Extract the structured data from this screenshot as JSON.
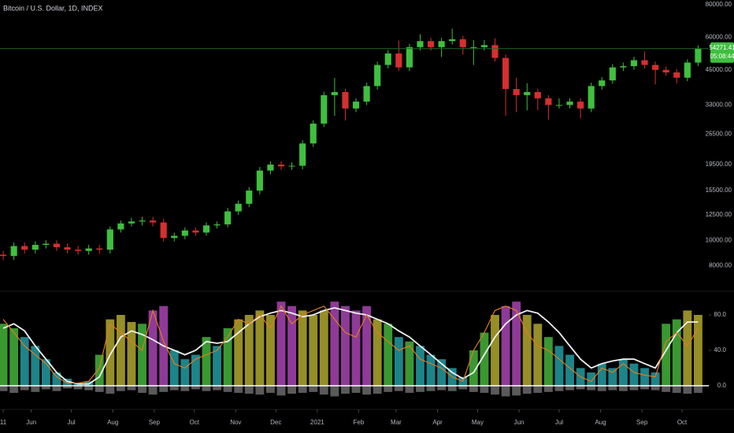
{
  "chart_data": [
    {
      "type": "candlestick",
      "title": "Bitcoin / U.S. Dollar, 1D, INDEX",
      "log_scale": true,
      "up_color": "#3fbf3f",
      "down_color": "#d62f2f",
      "price_line_color": "#1e6b2a",
      "countdown": "05:08:44",
      "xlim": [
        -0.3,
        66
      ],
      "ylim": [
        6830,
        83400
      ],
      "yticks": [
        {
          "value": 8000,
          "label": "8000.00"
        },
        {
          "value": 10000,
          "label": "10000.00"
        },
        {
          "value": 12500,
          "label": "12500.00"
        },
        {
          "value": 15500,
          "label": "15500.00"
        },
        {
          "value": 19500,
          "label": "19500.00"
        },
        {
          "value": 25500,
          "label": "25500.00"
        },
        {
          "value": 33000,
          "label": "33000.00"
        },
        {
          "value": 45000,
          "label": "45000.00"
        },
        {
          "value": 60000,
          "label": "60000.00"
        },
        {
          "value": 80000,
          "label": "80000.00"
        }
      ],
      "open": [
        8800,
        8700,
        9500,
        9200,
        9600,
        9700,
        9400,
        9200,
        9100,
        9300,
        9200,
        11000,
        11600,
        11800,
        11900,
        11700,
        10200,
        10400,
        10900,
        10700,
        11400,
        11500,
        12900,
        13800,
        15500,
        18500,
        19500,
        19200,
        19300,
        23500,
        28000,
        36000,
        37000,
        32000,
        34000,
        39000,
        47000,
        52000,
        46000,
        55000,
        58000,
        55000,
        58000,
        59000,
        55000,
        55000,
        56000,
        50000,
        38000,
        36000,
        37000,
        35000,
        33000,
        33000,
        34000,
        32000,
        39000,
        41000,
        46000,
        46500,
        49000,
        47000,
        45000,
        44000,
        42000,
        48000
      ],
      "high": [
        9100,
        9800,
        9800,
        9900,
        10000,
        10000,
        9700,
        9500,
        9600,
        9600,
        11300,
        11900,
        12200,
        12300,
        12300,
        12100,
        10700,
        11200,
        11200,
        11700,
        11800,
        13300,
        14200,
        16000,
        19100,
        20100,
        20100,
        19900,
        24200,
        28800,
        37100,
        41900,
        38100,
        35000,
        40200,
        48400,
        53600,
        58300,
        56700,
        61700,
        59700,
        59700,
        64800,
        60800,
        58600,
        58600,
        59500,
        51500,
        42000,
        40000,
        38100,
        36000,
        35000,
        35000,
        35000,
        40200,
        42200,
        47400,
        48000,
        50500,
        52900,
        48400,
        46400,
        45300,
        49400,
        55800
      ],
      "low": [
        8400,
        8400,
        8900,
        8900,
        9300,
        9100,
        8900,
        8800,
        8800,
        8900,
        8900,
        10700,
        11300,
        11400,
        11300,
        9900,
        9900,
        10100,
        10400,
        10400,
        11100,
        11200,
        12500,
        13400,
        15000,
        17900,
        18600,
        18600,
        18700,
        22800,
        27200,
        30000,
        28800,
        31000,
        33000,
        37800,
        45600,
        44600,
        44600,
        53400,
        53400,
        50400,
        56300,
        51500,
        47000,
        53400,
        48500,
        30000,
        31000,
        31500,
        31500,
        29000,
        32000,
        32000,
        29300,
        31000,
        37800,
        39800,
        44600,
        45100,
        45600,
        39600,
        42700,
        40000,
        40700,
        46600
      ],
      "close": [
        8700,
        9500,
        9200,
        9600,
        9700,
        9400,
        9200,
        9100,
        9300,
        9200,
        11000,
        11600,
        11800,
        11900,
        11700,
        10200,
        10400,
        10900,
        10700,
        11400,
        11500,
        12900,
        13800,
        15500,
        18500,
        19500,
        19200,
        19300,
        23500,
        28000,
        36000,
        37000,
        32000,
        34000,
        39000,
        47000,
        52000,
        46000,
        55000,
        58000,
        55000,
        58000,
        59000,
        55000,
        55000,
        56000,
        50000,
        38000,
        36000,
        37000,
        35000,
        33000,
        33000,
        34000,
        32000,
        39000,
        41000,
        46000,
        46500,
        49000,
        47000,
        45000,
        44000,
        42000,
        48000,
        54271.41
      ]
    },
    {
      "type": "indicator",
      "xlim": [
        -0.3,
        66
      ],
      "xticks": [
        {
          "value": 0,
          "label": "11"
        },
        {
          "value": 2.625,
          "label": "Jun"
        },
        {
          "value": 6.375,
          "label": "Jul"
        },
        {
          "value": 10.25,
          "label": "Aug"
        },
        {
          "value": 14.125,
          "label": "Sep"
        },
        {
          "value": 17.875,
          "label": "Oct"
        },
        {
          "value": 21.75,
          "label": "Nov"
        },
        {
          "value": 25.5,
          "label": "Dec"
        },
        {
          "value": 29.375,
          "label": "2021"
        },
        {
          "value": 33.25,
          "label": "Feb"
        },
        {
          "value": 36.75,
          "label": "Mar"
        },
        {
          "value": 40.625,
          "label": "Apr"
        },
        {
          "value": 44.375,
          "label": "May"
        },
        {
          "value": 48.25,
          "label": "Jun"
        },
        {
          "value": 52,
          "label": "Jul"
        },
        {
          "value": 55.875,
          "label": "Aug"
        },
        {
          "value": 59.75,
          "label": "Sep"
        },
        {
          "value": 63.5,
          "label": "Oct"
        }
      ],
      "ylim": [
        -17.8,
        97.8
      ],
      "yticks": [
        {
          "value": 0,
          "label": "0.0"
        },
        {
          "value": 40,
          "label": "40.0"
        },
        {
          "value": 80,
          "label": "80.0"
        }
      ],
      "histogram": {
        "values": [
          70,
          65,
          55,
          45,
          30,
          15,
          8,
          3,
          5,
          35,
          75,
          80,
          72,
          70,
          85,
          90,
          40,
          30,
          35,
          55,
          45,
          65,
          75,
          80,
          85,
          80,
          95,
          90,
          85,
          80,
          85,
          95,
          90,
          85,
          90,
          75,
          70,
          55,
          50,
          45,
          35,
          30,
          20,
          10,
          40,
          60,
          80,
          90,
          95,
          80,
          70,
          55,
          45,
          35,
          20,
          15,
          25,
          20,
          30,
          25,
          20,
          15,
          70,
          75,
          85,
          80
        ],
        "colors": [
          "#3fa535",
          "#3fa535",
          "#1f8f96",
          "#1f8f96",
          "#1f8f96",
          "#1f8f96",
          "#1f8f96",
          "#1f8f96",
          "#1f8f96",
          "#3fa535",
          "#a39a2a",
          "#a39a2a",
          "#a39a2a",
          "#3fa535",
          "#9b3fa6",
          "#9b3fa6",
          "#1f8f96",
          "#1f8f96",
          "#1f8f96",
          "#3fa535",
          "#1f8f96",
          "#3fa535",
          "#a39a2a",
          "#a39a2a",
          "#a39a2a",
          "#a39a2a",
          "#9b3fa6",
          "#9b3fa6",
          "#a39a2a",
          "#a39a2a",
          "#a39a2a",
          "#9b3fa6",
          "#9b3fa6",
          "#9b3fa6",
          "#9b3fa6",
          "#a39a2a",
          "#3fa535",
          "#1f8f96",
          "#3fa535",
          "#1f8f96",
          "#1f8f96",
          "#1f8f96",
          "#1f8f96",
          "#1f8f96",
          "#3fa535",
          "#3fa535",
          "#a39a2a",
          "#9b3fa6",
          "#9b3fa6",
          "#a39a2a",
          "#a39a2a",
          "#3fa535",
          "#1f8f96",
          "#1f8f96",
          "#1f8f96",
          "#1f8f96",
          "#1f8f96",
          "#1f8f96",
          "#1f8f96",
          "#1f8f96",
          "#1f8f96",
          "#1f8f96",
          "#3fa535",
          "#3fa535",
          "#a39a2a",
          "#a39a2a"
        ]
      },
      "negative_bars": {
        "color": "#5a5a5a",
        "values": [
          -6,
          -8,
          -5,
          -7,
          -4,
          -6,
          -3,
          -4,
          -5,
          -7,
          -9,
          -6,
          -5,
          -8,
          -10,
          -7,
          -5,
          -6,
          -4,
          -6,
          -5,
          -7,
          -8,
          -9,
          -10,
          -8,
          -11,
          -9,
          -8,
          -7,
          -10,
          -12,
          -9,
          -8,
          -10,
          -9,
          -7,
          -6,
          -8,
          -7,
          -6,
          -5,
          -6,
          -4,
          -7,
          -8,
          -10,
          -12,
          -11,
          -9,
          -8,
          -7,
          -6,
          -5,
          -4,
          -5,
          -6,
          -5,
          -6,
          -5,
          -4,
          -5,
          -7,
          -8,
          -9,
          -8
        ]
      },
      "lines": [
        {
          "color": "#f0f0f0",
          "width": 1.8,
          "values": [
            65,
            70,
            62,
            45,
            30,
            15,
            5,
            2,
            2,
            10,
            35,
            55,
            62,
            58,
            52,
            45,
            40,
            35,
            40,
            50,
            48,
            50,
            60,
            70,
            78,
            82,
            85,
            82,
            78,
            80,
            85,
            88,
            85,
            82,
            80,
            75,
            70,
            62,
            55,
            45,
            35,
            25,
            15,
            8,
            15,
            35,
            55,
            70,
            80,
            85,
            82,
            72,
            60,
            45,
            30,
            20,
            25,
            28,
            30,
            30,
            25,
            20,
            40,
            60,
            72,
            72
          ]
        },
        {
          "color": "#e07b1e",
          "width": 1.2,
          "values": [
            75,
            60,
            45,
            35,
            25,
            10,
            3,
            3,
            5,
            20,
            70,
            60,
            50,
            40,
            85,
            50,
            25,
            20,
            30,
            35,
            40,
            55,
            75,
            70,
            80,
            65,
            90,
            70,
            80,
            85,
            90,
            75,
            60,
            55,
            80,
            60,
            50,
            40,
            45,
            30,
            25,
            20,
            10,
            5,
            40,
            60,
            85,
            90,
            85,
            60,
            45,
            40,
            30,
            20,
            10,
            5,
            20,
            15,
            25,
            15,
            12,
            10,
            50,
            60,
            45,
            65
          ]
        }
      ]
    }
  ]
}
